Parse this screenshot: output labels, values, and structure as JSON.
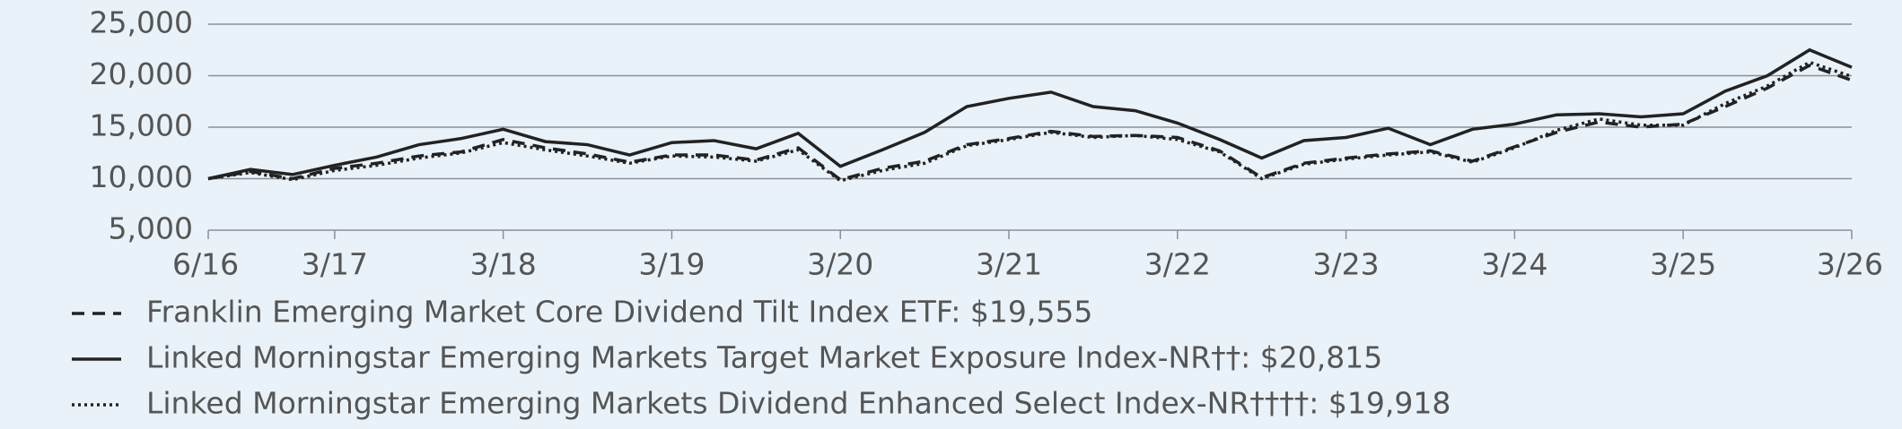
{
  "chart_data": {
    "type": "line",
    "categories": [
      "6/16",
      "9/16",
      "12/16",
      "3/17",
      "6/17",
      "9/17",
      "12/17",
      "3/18",
      "6/18",
      "9/18",
      "12/18",
      "3/19",
      "6/19",
      "9/19",
      "12/19",
      "3/20",
      "6/20",
      "9/20",
      "12/20",
      "3/21",
      "6/21",
      "9/21",
      "12/21",
      "3/22",
      "6/22",
      "9/22",
      "12/22",
      "3/23",
      "6/23",
      "9/23",
      "12/23",
      "3/24",
      "6/24",
      "9/24",
      "12/24",
      "3/25",
      "6/25",
      "9/25",
      "12/25",
      "3/26"
    ],
    "series": [
      {
        "name": "Franklin Emerging Market Core Dividend Tilt Index ETF: $19,555",
        "color": "#222222",
        "style": "dashed",
        "values": [
          10000,
          10700,
          10000,
          11000,
          11500,
          12200,
          12600,
          13800,
          13000,
          12400,
          11600,
          12300,
          12300,
          11800,
          13000,
          9900,
          11000,
          11700,
          13300,
          13900,
          14600,
          14100,
          14200,
          14000,
          12700,
          10100,
          11500,
          12000,
          12400,
          12700,
          11700,
          13100,
          14500,
          15500,
          15000,
          15300,
          17000,
          18800,
          21000,
          19555
        ]
      },
      {
        "name": "Linked Morningstar Emerging Markets Target Market Exposure Index-NR††: $20,815",
        "color": "#222222",
        "style": "solid",
        "values": [
          10000,
          10900,
          10400,
          11300,
          12100,
          13300,
          13900,
          14800,
          13600,
          13300,
          12300,
          13500,
          13700,
          12900,
          14400,
          11200,
          12800,
          14500,
          17000,
          17800,
          18400,
          17000,
          16600,
          15400,
          13800,
          12000,
          13700,
          14000,
          14900,
          13300,
          14800,
          15300,
          16200,
          16300,
          16000,
          16300,
          18500,
          20000,
          22500,
          20815
        ]
      },
      {
        "name": "Linked Morningstar Emerging Markets Dividend Enhanced Select Index-NR††††: $19,918",
        "color": "#222222",
        "style": "dotted",
        "values": [
          10000,
          10600,
          9900,
          10800,
          11300,
          12000,
          12500,
          13500,
          12800,
          12200,
          11500,
          12200,
          12100,
          11700,
          12800,
          9800,
          10800,
          11500,
          13200,
          13800,
          14500,
          14000,
          14200,
          13800,
          12600,
          10000,
          11400,
          11900,
          12300,
          12600,
          11600,
          13000,
          14700,
          15800,
          15200,
          15200,
          17300,
          19000,
          21300,
          19918
        ]
      }
    ],
    "xticks": [
      "6/16",
      "3/17",
      "3/18",
      "3/19",
      "3/20",
      "3/21",
      "3/22",
      "3/23",
      "3/24",
      "3/25",
      "3/26"
    ],
    "ylim": [
      5000,
      25000
    ],
    "yticks": [
      {
        "value": 5000,
        "label": "5,000"
      },
      {
        "value": 10000,
        "label": "10,000"
      },
      {
        "value": 15000,
        "label": "15,000"
      },
      {
        "value": 20000,
        "label": "20,000"
      },
      {
        "value": 25000,
        "label": "25,000"
      }
    ],
    "grid": true
  }
}
